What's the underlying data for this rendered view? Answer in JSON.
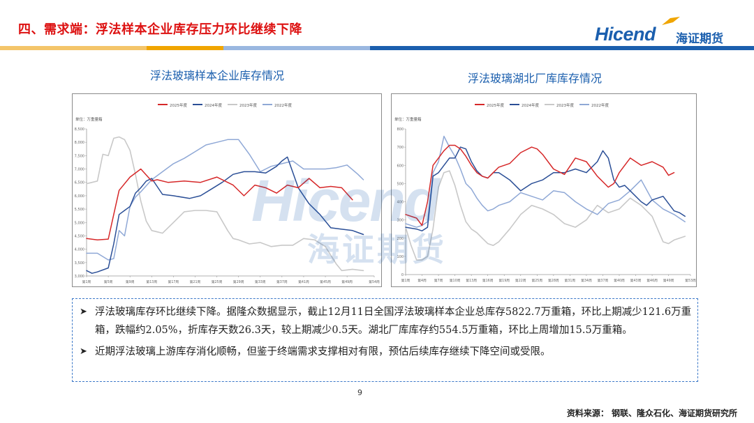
{
  "header": {
    "title": "四、需求端：浮法样本企业库存压力环比继续下降",
    "logo_en": "Hicend",
    "logo_cn": "海证期货"
  },
  "colors": {
    "accent_red": "#d11111",
    "brand_blue": "#1b5fae",
    "bar_orange": "#f0a500",
    "bar_blue": "#1b5fae",
    "series_2025": "#d62728",
    "series_2024": "#2a4e96",
    "series_2023": "#c8c8c8",
    "series_2022": "#8fa8d6"
  },
  "chart_titles": {
    "left": "浮法玻璃样本企业库存情况",
    "right": "浮法玻璃湖北厂库库存情况"
  },
  "watermark": {
    "en": "Hicend",
    "cn": "海证期货"
  },
  "chart_data": [
    {
      "type": "line",
      "unit_label": "单位：万重量箱",
      "legend": [
        "2025年度",
        "2024年度",
        "2023年度",
        "2022年度"
      ],
      "legend_placement": "top",
      "grid": false,
      "ylim": [
        3000,
        8500
      ],
      "yticks": [
        "8,500",
        "8,000",
        "7,500",
        "7,000",
        "6,500",
        "6,000",
        "5,500",
        "5,000",
        "4,500",
        "4,000",
        "3,500",
        "3,000"
      ],
      "xticks": [
        "第1周",
        "第5周",
        "第9周",
        "第13周",
        "第17周",
        "第21周",
        "第25周",
        "第29周",
        "第33周",
        "第37周",
        "第41周",
        "第45周",
        "第49周",
        "第54周"
      ],
      "xlim": [
        1,
        54
      ],
      "series": [
        {
          "name": "2025年度",
          "x": [
            1,
            3,
            5,
            6,
            7,
            9,
            11,
            13,
            14,
            16,
            19,
            22,
            25,
            28,
            30,
            32,
            34,
            36,
            38,
            40,
            42,
            44,
            46,
            48,
            50
          ],
          "values": [
            4400,
            4350,
            4380,
            5300,
            6200,
            6700,
            7000,
            6550,
            6600,
            6500,
            6550,
            6500,
            6700,
            6400,
            6000,
            6400,
            6300,
            6100,
            6400,
            6300,
            6650,
            6300,
            6350,
            6300,
            5850
          ]
        },
        {
          "name": "2024年度",
          "x": [
            1,
            2,
            3,
            5,
            6,
            7,
            8,
            9,
            10,
            11,
            12,
            13,
            15,
            17,
            20,
            22,
            24,
            26,
            28,
            30,
            32,
            34,
            36,
            37,
            38,
            40,
            42,
            44,
            46,
            48,
            50,
            52
          ],
          "values": [
            3200,
            3100,
            3150,
            3300,
            4200,
            5300,
            5450,
            5600,
            6100,
            6300,
            6550,
            6650,
            6050,
            6000,
            5900,
            6000,
            6250,
            6500,
            6800,
            6900,
            6900,
            6850,
            7100,
            7300,
            7450,
            6300,
            5700,
            5300,
            4800,
            4750,
            4700,
            4550
          ]
        },
        {
          "name": "2023年度",
          "x": [
            1,
            3,
            4,
            5,
            6,
            7,
            8,
            9,
            10,
            11,
            12,
            13,
            14,
            15,
            17,
            19,
            21,
            23,
            25,
            27,
            28,
            29,
            31,
            33,
            35,
            37,
            39,
            41,
            43,
            45,
            47,
            48,
            50,
            52
          ],
          "values": [
            6450,
            6550,
            7550,
            7500,
            8150,
            8200,
            8100,
            7700,
            6800,
            5800,
            5050,
            4700,
            4650,
            4600,
            5000,
            5400,
            5450,
            5450,
            5400,
            4700,
            4400,
            4350,
            4200,
            4250,
            4100,
            4150,
            4150,
            4400,
            4350,
            4100,
            3450,
            3200,
            3250,
            3200
          ]
        },
        {
          "name": "2022年度",
          "x": [
            1,
            3,
            5,
            6,
            7,
            8,
            9,
            10,
            11,
            13,
            15,
            17,
            19,
            21,
            23,
            25,
            27,
            29,
            31,
            33,
            35,
            37,
            39,
            41,
            43,
            45,
            47,
            49,
            51,
            52
          ],
          "values": [
            3850,
            3850,
            3600,
            3650,
            4700,
            4500,
            5600,
            5950,
            6150,
            6600,
            6900,
            7200,
            7400,
            7650,
            7900,
            8000,
            8100,
            8100,
            7550,
            6900,
            7100,
            7200,
            7300,
            7000,
            7000,
            7000,
            7050,
            7150,
            6800,
            6600
          ]
        }
      ]
    },
    {
      "type": "line",
      "unit_label": "单位：万重量箱",
      "legend": [
        "2025年度",
        "2024年度",
        "2023年度",
        "2022年度"
      ],
      "legend_placement": "top",
      "grid": false,
      "ylim": [
        0,
        800
      ],
      "yticks": [
        "800",
        "700",
        "600",
        "500",
        "400",
        "300",
        "200",
        "100",
        "0"
      ],
      "xticks": [
        "第1周",
        "第4周",
        "第7周",
        "第10周",
        "第13周",
        "第16周",
        "第19周",
        "第22周",
        "第25周",
        "第28周",
        "第31周",
        "第34周",
        "第37周",
        "第40周",
        "第43周",
        "第46周",
        "第49周",
        "第53周"
      ],
      "xlim": [
        1,
        53
      ],
      "series": [
        {
          "name": "2025年度",
          "x": [
            1,
            3,
            4,
            5,
            6,
            7,
            8,
            9,
            10,
            11,
            12,
            13,
            14,
            15,
            16,
            17,
            18,
            20,
            22,
            24,
            25,
            26,
            28,
            30,
            32,
            34,
            36,
            38,
            39,
            40,
            42,
            44,
            46,
            48,
            49,
            50
          ],
          "values": [
            330,
            310,
            270,
            400,
            600,
            640,
            680,
            710,
            710,
            690,
            650,
            600,
            560,
            540,
            530,
            560,
            590,
            610,
            670,
            700,
            690,
            660,
            580,
            550,
            640,
            620,
            540,
            480,
            500,
            560,
            640,
            600,
            620,
            590,
            545,
            560
          ]
        },
        {
          "name": "2024年度",
          "x": [
            1,
            3,
            4,
            5,
            6,
            7,
            8,
            9,
            10,
            11,
            12,
            13,
            14,
            15,
            16,
            17,
            18,
            20,
            22,
            24,
            26,
            28,
            30,
            32,
            34,
            36,
            37,
            38,
            39,
            40,
            41,
            42,
            44,
            45,
            46,
            48,
            50,
            51,
            52
          ],
          "values": [
            260,
            250,
            240,
            260,
            540,
            560,
            600,
            640,
            640,
            700,
            690,
            620,
            570,
            540,
            530,
            560,
            560,
            520,
            460,
            500,
            520,
            560,
            560,
            580,
            560,
            620,
            680,
            640,
            520,
            480,
            490,
            460,
            400,
            380,
            410,
            430,
            350,
            340,
            320
          ]
        },
        {
          "name": "2023年度",
          "x": [
            1,
            2,
            3,
            4,
            5,
            6,
            7,
            8,
            9,
            10,
            11,
            12,
            13,
            14,
            15,
            16,
            17,
            18,
            20,
            22,
            24,
            26,
            28,
            30,
            32,
            34,
            36,
            38,
            40,
            42,
            44,
            46,
            47,
            48,
            49,
            50,
            52
          ],
          "values": [
            260,
            160,
            80,
            80,
            100,
            250,
            480,
            560,
            570,
            490,
            380,
            290,
            250,
            230,
            200,
            170,
            160,
            180,
            250,
            330,
            380,
            360,
            330,
            280,
            260,
            300,
            380,
            340,
            360,
            420,
            380,
            320,
            250,
            180,
            170,
            190,
            210
          ]
        },
        {
          "name": "2022年度",
          "x": [
            1,
            3,
            4,
            5,
            6,
            7,
            8,
            9,
            10,
            11,
            12,
            13,
            14,
            15,
            16,
            17,
            18,
            20,
            22,
            24,
            26,
            28,
            30,
            32,
            34,
            36,
            38,
            40,
            42,
            44,
            46,
            48,
            50,
            52
          ],
          "values": [
            280,
            260,
            270,
            290,
            560,
            620,
            760,
            700,
            650,
            580,
            500,
            470,
            420,
            380,
            350,
            360,
            380,
            400,
            450,
            430,
            410,
            460,
            450,
            400,
            360,
            330,
            390,
            410,
            460,
            520,
            410,
            360,
            330,
            290
          ]
        }
      ]
    }
  ],
  "summary": {
    "bullets": [
      "浮法玻璃库存环比继续下降。据隆众数据显示，截止12月11日全国浮法玻璃样本企业总库存5822.7万重箱，环比上期减少121.6万重箱，跌幅约2.05%，折库存天数26.3天，较上期减少0.5天。湖北厂库库存约554.5万重箱，环比上周增加15.5万重箱。",
      "近期浮法玻璃上游库存消化顺畅，但鉴于终端需求支撑相对有限，预估后续库存继续下降空间或受限。"
    ],
    "arrow": "➤"
  },
  "footer": {
    "page": "9",
    "source": "资料来源： 钢联、隆众石化、海证期货研究所"
  }
}
